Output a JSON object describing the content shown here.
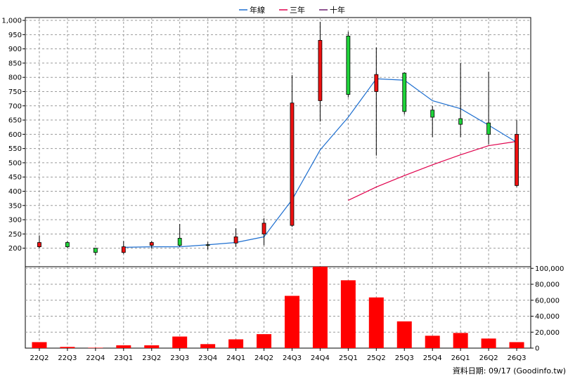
{
  "chart_data": {
    "type": "candlestick-with-volume",
    "legend": [
      {
        "label": "年線",
        "color": "#1e6fd0"
      },
      {
        "label": "三年",
        "color": "#e0004c"
      },
      {
        "label": "十年",
        "color": "#6a1d6f"
      }
    ],
    "legend_placement": "top-center",
    "grid": true,
    "categories": [
      "22Q2",
      "22Q3",
      "22Q4",
      "23Q1",
      "23Q2",
      "23Q3",
      "23Q4",
      "24Q1",
      "24Q2",
      "24Q3",
      "24Q4",
      "25Q1",
      "25Q2",
      "25Q3",
      "25Q4",
      "26Q1",
      "26Q2",
      "26Q3"
    ],
    "price_axis": {
      "ylim": [
        135,
        1010
      ],
      "ticks": [
        200,
        250,
        300,
        350,
        400,
        450,
        500,
        550,
        600,
        650,
        700,
        750,
        800,
        850,
        900,
        950,
        1000
      ],
      "tick_labels": [
        "200",
        "250",
        "300",
        "350",
        "400",
        "450",
        "500",
        "550",
        "600",
        "650",
        "700",
        "750",
        "800",
        "850",
        "900",
        "950",
        "1,000"
      ]
    },
    "candles": [
      {
        "open": 220,
        "high": 245,
        "low": 200,
        "close": 205
      },
      {
        "open": 205,
        "high": 225,
        "low": 200,
        "close": 220
      },
      {
        "open": 185,
        "high": 200,
        "low": 175,
        "close": 200
      },
      {
        "open": 205,
        "high": 225,
        "low": 180,
        "close": 185
      },
      {
        "open": 220,
        "high": 225,
        "low": 198,
        "close": 210
      },
      {
        "open": 210,
        "high": 285,
        "low": 205,
        "close": 235
      },
      {
        "open": 210,
        "high": 222,
        "low": 195,
        "close": 212
      },
      {
        "open": 240,
        "high": 270,
        "low": 205,
        "close": 218
      },
      {
        "open": 288,
        "high": 305,
        "low": 210,
        "close": 250
      },
      {
        "open": 710,
        "high": 808,
        "low": 275,
        "close": 280
      },
      {
        "open": 930,
        "high": 995,
        "low": 645,
        "close": 718
      },
      {
        "open": 740,
        "high": 960,
        "low": 730,
        "close": 945
      },
      {
        "open": 810,
        "high": 905,
        "low": 525,
        "close": 750
      },
      {
        "open": 680,
        "high": 818,
        "low": 670,
        "close": 815
      },
      {
        "open": 660,
        "high": 700,
        "low": 590,
        "close": 685
      },
      {
        "open": 635,
        "high": 850,
        "low": 590,
        "close": 655
      },
      {
        "open": 600,
        "high": 820,
        "low": 565,
        "close": 640
      },
      {
        "open": 600,
        "high": 650,
        "low": 415,
        "close": 420
      }
    ],
    "candle_colors": {
      "up": "#1fd43a",
      "down": "#ee1111"
    },
    "series": [
      {
        "name": "年線",
        "values": [
          null,
          null,
          null,
          203,
          205,
          205,
          212,
          220,
          240,
          370,
          545,
          660,
          795,
          790,
          718,
          690,
          632,
          572
        ]
      },
      {
        "name": "三年",
        "values": [
          null,
          null,
          null,
          null,
          null,
          null,
          null,
          null,
          null,
          null,
          null,
          368,
          415,
          455,
          493,
          528,
          560,
          575
        ]
      },
      {
        "name": "十年",
        "values": [
          null,
          null,
          null,
          null,
          null,
          null,
          null,
          null,
          null,
          null,
          null,
          null,
          null,
          null,
          null,
          null,
          null,
          null
        ]
      }
    ],
    "volume_axis": {
      "ylim": [
        0,
        102000
      ],
      "ticks": [
        0,
        20000,
        40000,
        60000,
        80000,
        100000
      ],
      "tick_labels": [
        "0",
        "20,000",
        "40,000",
        "60,000",
        "80,000",
        "100,000"
      ]
    },
    "volume": [
      7500,
      1500,
      500,
      3500,
      3500,
      14500,
      5000,
      11000,
      17500,
      65500,
      102500,
      85000,
      63500,
      33500,
      15500,
      19000,
      12000,
      7500
    ],
    "volume_color": "#ff0000"
  },
  "footer": {
    "text": "資料日期: 09/17  (Goodinfo.tw)"
  }
}
